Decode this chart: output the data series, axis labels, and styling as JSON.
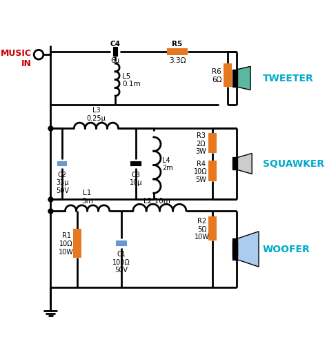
{
  "bg_color": "#ffffff",
  "line_color": "#000000",
  "line_width": 2.0,
  "orange_color": "#E87820",
  "blue_color": "#6699CC",
  "teal_color": "#5BB8A0",
  "dark_color": "#222222",
  "red_color": "#CC0000",
  "cyan_color": "#00AACC",
  "title": "",
  "labels": {
    "music_in": "MUSIC\nIN",
    "tweeter": "TWEETER",
    "squawker": "SQUAWKER",
    "woofer": "WOOFER",
    "C4": "C4\n6μ",
    "R5": "R5\n3.3Ω",
    "L5": "L5\n0.1m",
    "R6": "R6\n6Ω",
    "C2": "C2\n33μ\n50V",
    "L3": "L3\n0.25μ",
    "C3": "C3\n10μ",
    "L4": "L4\n2m",
    "R3": "R3\n2Ω\n3W",
    "R4": "R4\n10Ω\n5W",
    "L1": "L1\n3m",
    "L2": "L2 10m",
    "R1": "R1\n10Ω\n10W",
    "C1": "C1\n100Ω\n50V",
    "R2": "R2\n5Ω\n10W"
  }
}
